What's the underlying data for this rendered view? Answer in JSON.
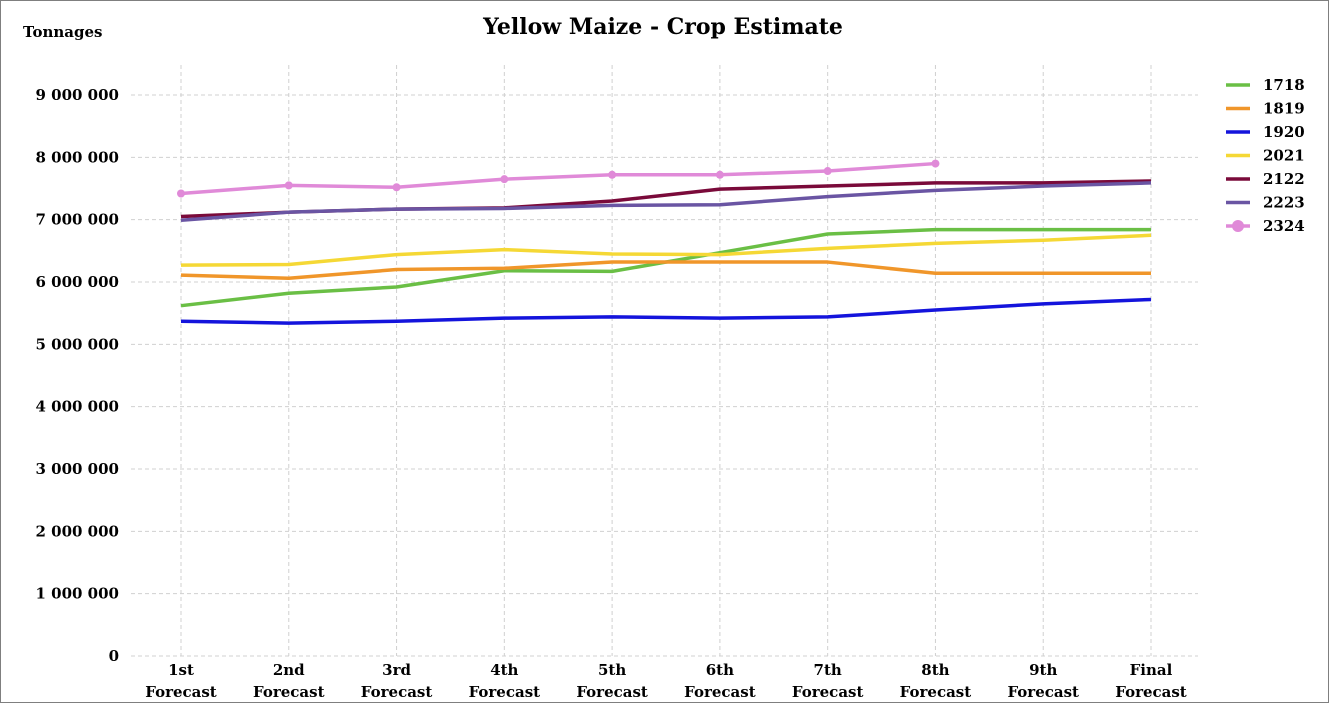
{
  "chart_data": {
    "type": "line",
    "title": "Yellow Maize - Crop Estimate",
    "ylabel": "Tonnages",
    "ylim": [
      0,
      9000000
    ],
    "ytick_values": [
      0,
      1000000,
      2000000,
      3000000,
      4000000,
      5000000,
      6000000,
      7000000,
      8000000,
      9000000
    ],
    "ytick_labels": [
      "0",
      "1 000 000",
      "2 000 000",
      "3 000 000",
      "4 000 000",
      "5 000 000",
      "6 000 000",
      "7 000 000",
      "8 000 000",
      "9 000 000"
    ],
    "categories": [
      [
        "1st",
        "Forecast"
      ],
      [
        "2nd",
        "Forecast"
      ],
      [
        "3rd",
        "Forecast"
      ],
      [
        "4th",
        "Forecast"
      ],
      [
        "5th",
        "Forecast"
      ],
      [
        "6th",
        "Forecast"
      ],
      [
        "7th",
        "Forecast"
      ],
      [
        "8th",
        "Forecast"
      ],
      [
        "9th",
        "Forecast"
      ],
      [
        "Final",
        "Forecast"
      ]
    ],
    "grid": true,
    "legend_position": "right",
    "series": [
      {
        "name": "1718",
        "color": "#6abf45",
        "markers": false,
        "values": [
          5620000,
          5820000,
          5920000,
          6180000,
          6170000,
          6470000,
          6770000,
          6840000,
          6840000,
          6840000
        ]
      },
      {
        "name": "1819",
        "color": "#f0962a",
        "markers": false,
        "values": [
          6110000,
          6060000,
          6200000,
          6220000,
          6320000,
          6320000,
          6320000,
          6140000,
          6140000,
          6140000
        ]
      },
      {
        "name": "1920",
        "color": "#1414dc",
        "markers": false,
        "values": [
          5370000,
          5340000,
          5370000,
          5420000,
          5440000,
          5420000,
          5440000,
          5550000,
          5650000,
          5720000
        ]
      },
      {
        "name": "2021",
        "color": "#f5d835",
        "markers": false,
        "values": [
          6270000,
          6280000,
          6440000,
          6520000,
          6450000,
          6440000,
          6540000,
          6620000,
          6670000,
          6750000
        ]
      },
      {
        "name": "2122",
        "color": "#7a0a3a",
        "markers": false,
        "values": [
          7050000,
          7120000,
          7170000,
          7190000,
          7300000,
          7490000,
          7540000,
          7590000,
          7590000,
          7620000
        ]
      },
      {
        "name": "2223",
        "color": "#6a55a3",
        "markers": false,
        "values": [
          6990000,
          7120000,
          7170000,
          7180000,
          7230000,
          7240000,
          7370000,
          7470000,
          7540000,
          7590000
        ]
      },
      {
        "name": "2324",
        "color": "#e08ad8",
        "markers": true,
        "values": [
          7420000,
          7550000,
          7520000,
          7650000,
          7720000,
          7720000,
          7780000,
          7900000,
          null,
          null
        ]
      }
    ]
  }
}
